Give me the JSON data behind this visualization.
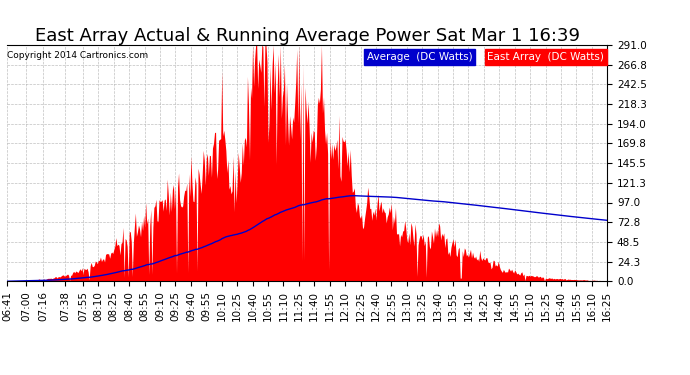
{
  "title": "East Array Actual & Running Average Power Sat Mar 1 16:39",
  "copyright": "Copyright 2014 Cartronics.com",
  "legend_avg": "Average  (DC Watts)",
  "legend_east": "East Array  (DC Watts)",
  "ylabel_values": [
    0.0,
    24.3,
    48.5,
    72.8,
    97.0,
    121.3,
    145.5,
    169.8,
    194.0,
    218.3,
    242.5,
    266.8,
    291.0
  ],
  "ymax": 291.0,
  "background_color": "#ffffff",
  "plot_bg_color": "#ffffff",
  "grid_color": "#b0b0b0",
  "area_color": "#ff0000",
  "line_color": "#0000cc",
  "title_fontsize": 13,
  "tick_fontsize": 7.5,
  "xtick_labels": [
    "06:41",
    "07:00",
    "07:16",
    "07:38",
    "07:55",
    "08:10",
    "08:25",
    "08:40",
    "08:55",
    "09:10",
    "09:25",
    "09:40",
    "09:55",
    "10:10",
    "10:25",
    "10:40",
    "10:55",
    "11:10",
    "11:25",
    "11:40",
    "11:55",
    "12:10",
    "12:25",
    "12:40",
    "12:55",
    "13:10",
    "13:25",
    "13:40",
    "13:55",
    "14:10",
    "14:25",
    "14:40",
    "14:55",
    "15:10",
    "15:25",
    "15:40",
    "15:55",
    "16:10",
    "16:25"
  ],
  "key_hours": [
    0,
    0.3,
    0.65,
    1.0,
    1.28,
    1.5,
    1.65,
    1.82,
    2.0,
    2.15,
    2.32,
    2.5,
    2.65,
    2.82,
    3.0,
    3.15,
    3.32,
    3.5,
    3.65,
    3.82,
    3.92,
    3.98,
    4.05,
    4.12,
    4.18,
    4.25,
    4.32,
    4.4,
    4.5,
    4.6,
    4.72,
    4.82,
    4.92,
    5.0,
    5.1,
    5.2,
    5.32,
    5.42,
    5.52,
    5.65,
    5.75,
    5.85,
    5.95,
    6.08,
    6.2,
    6.35,
    6.5,
    6.65,
    6.8,
    7.0,
    7.15,
    7.32,
    7.5,
    7.65,
    7.82,
    8.0,
    8.2,
    8.4,
    8.6,
    8.8,
    9.0,
    9.2,
    9.4,
    9.6,
    9.73
  ],
  "key_vals": [
    0,
    1,
    3,
    8,
    15,
    25,
    35,
    45,
    55,
    70,
    85,
    95,
    100,
    105,
    110,
    140,
    155,
    165,
    110,
    155,
    200,
    265,
    291,
    285,
    260,
    210,
    265,
    291,
    220,
    185,
    240,
    260,
    160,
    170,
    245,
    140,
    165,
    150,
    165,
    100,
    80,
    95,
    85,
    90,
    75,
    65,
    55,
    60,
    50,
    55,
    45,
    40,
    35,
    30,
    25,
    15,
    12,
    8,
    6,
    4,
    3,
    2,
    1.5,
    1,
    0.5
  ],
  "noise_seed": 42,
  "noise_std": 5
}
